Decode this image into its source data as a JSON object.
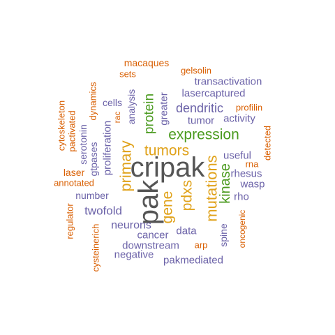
{
  "colors": {
    "gray": "#555555",
    "orange": "#d95f02",
    "purple": "#6b62a8",
    "green": "#4a9a1e",
    "gold": "#e0a21a"
  },
  "words": [
    {
      "text": "cripak",
      "color": "gray"
    },
    {
      "text": "pak",
      "color": "gray"
    },
    {
      "text": "expression",
      "color": "green"
    },
    {
      "text": "primary",
      "color": "gold"
    },
    {
      "text": "tumors",
      "color": "gold"
    },
    {
      "text": "mutations",
      "color": "gold"
    },
    {
      "text": "gene",
      "color": "gold"
    },
    {
      "text": "pdxs",
      "color": "gold"
    },
    {
      "text": "kinase",
      "color": "green"
    },
    {
      "text": "protein",
      "color": "green"
    },
    {
      "text": "dendritic",
      "color": "purple"
    },
    {
      "text": "twofold",
      "color": "purple"
    },
    {
      "text": "neurons",
      "color": "purple"
    },
    {
      "text": "downstream",
      "color": "purple"
    },
    {
      "text": "pakmediated",
      "color": "purple"
    },
    {
      "text": "cancer",
      "color": "purple"
    },
    {
      "text": "negative",
      "color": "purple"
    },
    {
      "text": "data",
      "color": "purple"
    },
    {
      "text": "number",
      "color": "purple"
    },
    {
      "text": "transactivation",
      "color": "purple"
    },
    {
      "text": "lasercaptured",
      "color": "purple"
    },
    {
      "text": "tumor",
      "color": "purple"
    },
    {
      "text": "activity",
      "color": "purple"
    },
    {
      "text": "useful",
      "color": "purple"
    },
    {
      "text": "rhesus",
      "color": "purple"
    },
    {
      "text": "wasp",
      "color": "purple"
    },
    {
      "text": "rho",
      "color": "purple"
    },
    {
      "text": "greater",
      "color": "purple"
    },
    {
      "text": "cells",
      "color": "purple"
    },
    {
      "text": "analysis",
      "color": "purple"
    },
    {
      "text": "proliferation",
      "color": "purple"
    },
    {
      "text": "serotonin",
      "color": "purple"
    },
    {
      "text": "gtpases",
      "color": "purple"
    },
    {
      "text": "spine",
      "color": "purple"
    },
    {
      "text": "macaques",
      "color": "orange"
    },
    {
      "text": "sets",
      "color": "orange"
    },
    {
      "text": "gelsolin",
      "color": "orange"
    },
    {
      "text": "profilin",
      "color": "orange"
    },
    {
      "text": "rac",
      "color": "orange"
    },
    {
      "text": "dynamics",
      "color": "orange"
    },
    {
      "text": "cytoskeleton",
      "color": "orange"
    },
    {
      "text": "pactivated",
      "color": "orange"
    },
    {
      "text": "laser",
      "color": "orange"
    },
    {
      "text": "annotated",
      "color": "orange"
    },
    {
      "text": "regulator",
      "color": "orange"
    },
    {
      "text": "cysteinerich",
      "color": "orange"
    },
    {
      "text": "arp",
      "color": "orange"
    },
    {
      "text": "oncogenic",
      "color": "orange"
    },
    {
      "text": "detected",
      "color": "orange"
    },
    {
      "text": "rna",
      "color": "orange"
    }
  ]
}
